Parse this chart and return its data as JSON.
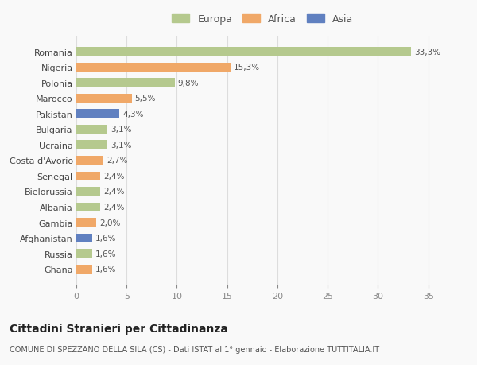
{
  "countries": [
    "Romania",
    "Nigeria",
    "Polonia",
    "Marocco",
    "Pakistan",
    "Bulgaria",
    "Ucraina",
    "Costa d'Avorio",
    "Senegal",
    "Bielorussia",
    "Albania",
    "Gambia",
    "Afghanistan",
    "Russia",
    "Ghana"
  ],
  "values": [
    33.3,
    15.3,
    9.8,
    5.5,
    4.3,
    3.1,
    3.1,
    2.7,
    2.4,
    2.4,
    2.4,
    2.0,
    1.6,
    1.6,
    1.6
  ],
  "labels": [
    "33,3%",
    "15,3%",
    "9,8%",
    "5,5%",
    "4,3%",
    "3,1%",
    "3,1%",
    "2,7%",
    "2,4%",
    "2,4%",
    "2,4%",
    "2,0%",
    "1,6%",
    "1,6%",
    "1,6%"
  ],
  "continents": [
    "Europa",
    "Africa",
    "Europa",
    "Africa",
    "Asia",
    "Europa",
    "Europa",
    "Africa",
    "Africa",
    "Europa",
    "Europa",
    "Africa",
    "Asia",
    "Europa",
    "Africa"
  ],
  "colors": {
    "Europa": "#b5c98e",
    "Africa": "#f0a868",
    "Asia": "#6080c0"
  },
  "legend": [
    "Europa",
    "Africa",
    "Asia"
  ],
  "legend_colors": [
    "#b5c98e",
    "#f0a868",
    "#6080c0"
  ],
  "xlim": [
    0,
    37
  ],
  "xticks": [
    0,
    5,
    10,
    15,
    20,
    25,
    30,
    35
  ],
  "title": "Cittadini Stranieri per Cittadinanza",
  "subtitle": "COMUNE DI SPEZZANO DELLA SILA (CS) - Dati ISTAT al 1° gennaio - Elaborazione TUTTITALIA.IT",
  "bg_color": "#f9f9f9",
  "grid_color": "#dddddd",
  "bar_height": 0.55,
  "label_fontsize": 7.5,
  "ytick_fontsize": 8,
  "xtick_fontsize": 8,
  "legend_fontsize": 9,
  "title_fontsize": 10,
  "subtitle_fontsize": 7
}
